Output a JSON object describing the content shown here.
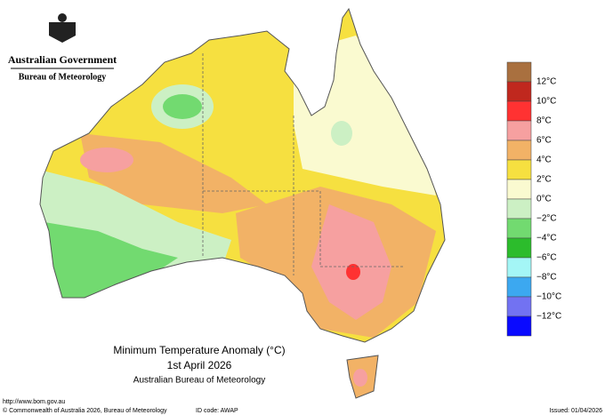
{
  "header": {
    "government": "Australian Government",
    "agency": "Bureau of Meteorology"
  },
  "title": {
    "main": "Minimum Temperature Anomaly (°C)",
    "date": "1st April 2026",
    "source": "Australian Bureau of Meteorology"
  },
  "legend": {
    "labels": [
      "12°C",
      "10°C",
      "8°C",
      "6°C",
      "4°C",
      "2°C",
      "0°C",
      "−2°C",
      "−4°C",
      "−6°C",
      "−8°C",
      "−10°C",
      "−12°C"
    ],
    "colors": [
      "#a9703f",
      "#c0281e",
      "#ff3232",
      "#f6a0a0",
      "#f2b266",
      "#f6e040",
      "#fafad0",
      "#ccf0c4",
      "#72da70",
      "#2cbc2c",
      "#a4f6f6",
      "#3ca8f0",
      "#7272f2",
      "#0a0aff"
    ]
  },
  "footer": {
    "url": "http://www.bom.gov.au",
    "copyright": "© Commonwealth of Australia 2026, Bureau of Meteorology",
    "id_code": "ID code: AWAP",
    "issued": "Issued: 01/04/2026"
  }
}
